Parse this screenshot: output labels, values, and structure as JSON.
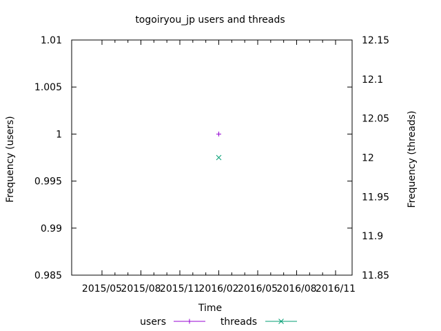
{
  "chart_data": {
    "type": "scatter",
    "title": "togoiryou_jp users and threads",
    "xlabel": "Time",
    "ylabel_left": "Frequency (users)",
    "ylabel_right": "Frequency (threads)",
    "x_ticks": [
      "2015/05",
      "2015/08",
      "2015/11",
      "2016/02",
      "2016/05",
      "2016/08",
      "2016/11"
    ],
    "ylim_left": [
      0.985,
      1.01
    ],
    "yticks_left": [
      "0.985",
      "0.99",
      "0.995",
      "1",
      "1.005",
      "1.01"
    ],
    "ylim_right": [
      11.85,
      12.15
    ],
    "yticks_right": [
      "11.85",
      "11.9",
      "11.95",
      "12",
      "12.05",
      "12.1",
      "12.15"
    ],
    "grid": false,
    "legend_position": "bottom",
    "series": [
      {
        "name": "users",
        "axis": "left",
        "marker": "plus",
        "color": "#9400d3",
        "points": [
          {
            "x": "2016/02",
            "y": 1
          }
        ]
      },
      {
        "name": "threads",
        "axis": "right",
        "marker": "cross",
        "color": "#009e73",
        "points": [
          {
            "x": "2016/02",
            "y": 12
          }
        ]
      }
    ]
  }
}
